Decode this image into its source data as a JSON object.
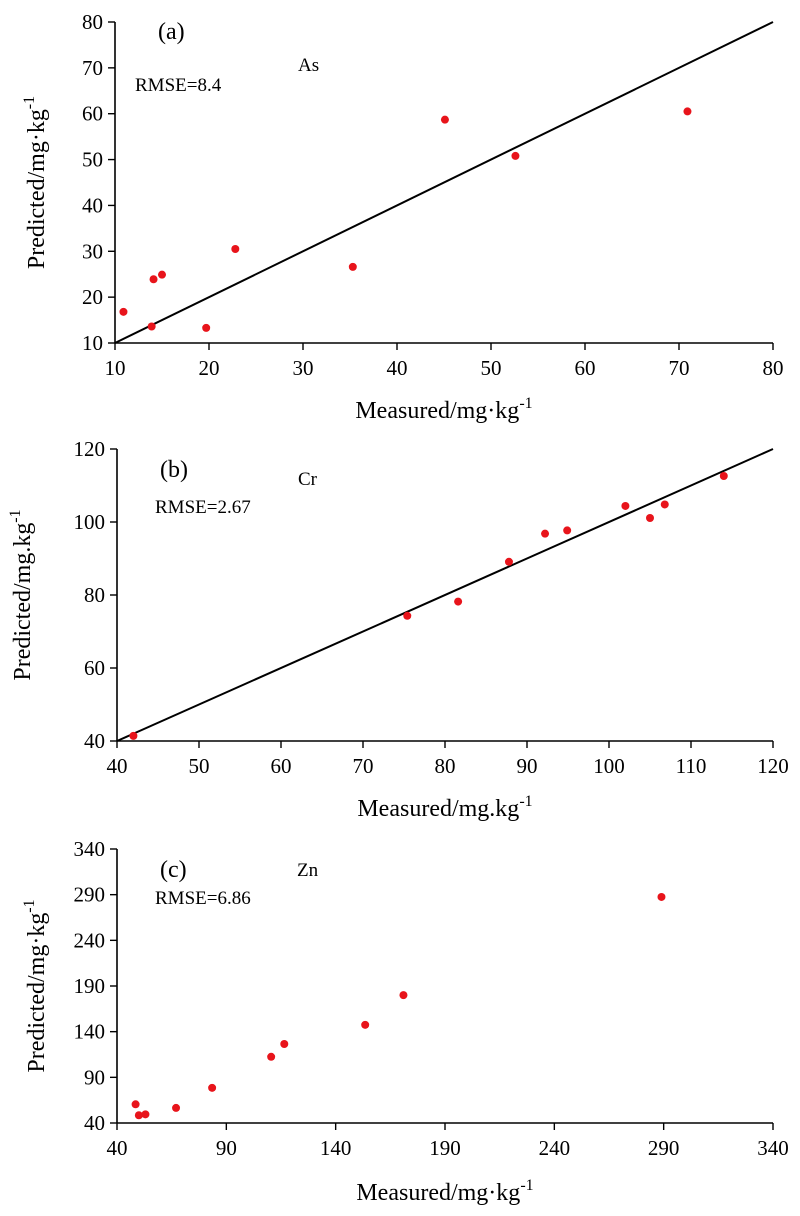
{
  "colors": {
    "points": "#e8141b",
    "axes": "#000000"
  },
  "chart_data": [
    {
      "type": "scatter",
      "panel_label": "(a)",
      "element": "As",
      "rmse": "RMSE=8.4",
      "xlabel": "Measured/mg·kg",
      "ylabel": "Predicted/mg·kg",
      "unit_exponent": "-1",
      "xlim": [
        10,
        80
      ],
      "ylim": [
        10,
        80
      ],
      "xticks": [
        "10",
        "20",
        "30",
        "40",
        "50",
        "60",
        "70",
        "80"
      ],
      "yticks": [
        "10",
        "20",
        "30",
        "40",
        "50",
        "60",
        "70",
        "80"
      ],
      "reference_line": "1:1",
      "points": [
        {
          "x": 10.9,
          "y": 16.8
        },
        {
          "x": 13.9,
          "y": 13.6
        },
        {
          "x": 14.1,
          "y": 23.9
        },
        {
          "x": 15.0,
          "y": 24.9
        },
        {
          "x": 19.7,
          "y": 13.3
        },
        {
          "x": 22.8,
          "y": 30.5
        },
        {
          "x": 35.3,
          "y": 26.6
        },
        {
          "x": 45.1,
          "y": 58.7
        },
        {
          "x": 52.6,
          "y": 50.8
        },
        {
          "x": 70.9,
          "y": 60.5
        }
      ]
    },
    {
      "type": "scatter",
      "panel_label": "(b)",
      "element": "Cr",
      "rmse": "RMSE=2.67",
      "xlabel": "Measured/mg.kg",
      "ylabel": "Predicted/mg.kg",
      "unit_exponent": "-1",
      "xlim": [
        40,
        120
      ],
      "ylim": [
        40,
        120
      ],
      "xticks": [
        "40",
        "50",
        "60",
        "70",
        "80",
        "90",
        "100",
        "110",
        "120"
      ],
      "yticks": [
        "40",
        "60",
        "80",
        "100",
        "120"
      ],
      "reference_line": "1:1",
      "points": [
        {
          "x": 42.0,
          "y": 41.4
        },
        {
          "x": 75.4,
          "y": 74.3
        },
        {
          "x": 81.6,
          "y": 78.2
        },
        {
          "x": 87.8,
          "y": 89.1
        },
        {
          "x": 92.2,
          "y": 96.8
        },
        {
          "x": 94.9,
          "y": 97.7
        },
        {
          "x": 102.0,
          "y": 104.4
        },
        {
          "x": 105.0,
          "y": 101.1
        },
        {
          "x": 106.8,
          "y": 104.8
        },
        {
          "x": 114.0,
          "y": 112.6
        }
      ]
    },
    {
      "type": "scatter",
      "panel_label": "(c)",
      "element": "Zn",
      "rmse": "RMSE=6.86",
      "xlabel": "Measured/mg·kg",
      "ylabel": "Predicted/mg·kg",
      "unit_exponent": "-1",
      "xlim": [
        40,
        340
      ],
      "ylim": [
        40,
        340
      ],
      "xticks": [
        "40",
        "90",
        "140",
        "190",
        "240",
        "290",
        "340"
      ],
      "yticks": [
        "40",
        "90",
        "140",
        "190",
        "240",
        "290",
        "340"
      ],
      "reference_line": "",
      "points": [
        {
          "x": 48.5,
          "y": 60.5
        },
        {
          "x": 50.0,
          "y": 48.5
        },
        {
          "x": 53.0,
          "y": 49.5
        },
        {
          "x": 67.0,
          "y": 56.5
        },
        {
          "x": 83.5,
          "y": 78.5
        },
        {
          "x": 110.5,
          "y": 112.5
        },
        {
          "x": 116.5,
          "y": 126.5
        },
        {
          "x": 153.5,
          "y": 147.5
        },
        {
          "x": 171.0,
          "y": 180.0
        },
        {
          "x": 289.0,
          "y": 287.5
        }
      ]
    }
  ]
}
